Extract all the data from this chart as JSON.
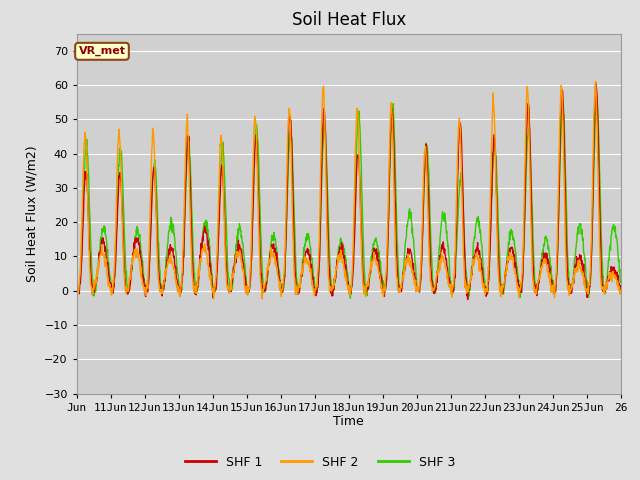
{
  "title": "Soil Heat Flux",
  "xlabel": "Time",
  "ylabel": "Soil Heat Flux (W/m2)",
  "ylim": [
    -30,
    75
  ],
  "yticks": [
    -30,
    -20,
    -10,
    0,
    10,
    20,
    30,
    40,
    50,
    60,
    70
  ],
  "x_start_day": 10,
  "x_end_day": 26,
  "x_tick_days": [
    10,
    11,
    12,
    13,
    14,
    15,
    16,
    17,
    18,
    19,
    20,
    21,
    22,
    23,
    24,
    25,
    26
  ],
  "x_tick_labels": [
    "Jun",
    "11Jun",
    "12Jun",
    "13Jun",
    "14Jun",
    "15Jun",
    "16Jun",
    "17Jun",
    "18Jun",
    "19Jun",
    "20Jun",
    "21Jun",
    "22Jun",
    "23Jun",
    "24Jun",
    "25Jun",
    "26"
  ],
  "line_colors": [
    "#cc0000",
    "#ff9900",
    "#33cc00"
  ],
  "line_labels": [
    "SHF 1",
    "SHF 2",
    "SHF 3"
  ],
  "line_width": 1.0,
  "fig_bg_color": "#e0e0e0",
  "plot_bg_color": "#d0d0d0",
  "grid_color": "#ffffff",
  "annotation_text": "VR_met",
  "annotation_box_facecolor": "#ffffcc",
  "annotation_border_color": "#8B4513",
  "annotation_text_color": "#8B0000",
  "title_fontsize": 12,
  "label_fontsize": 9,
  "tick_fontsize": 8,
  "legend_fontsize": 9
}
